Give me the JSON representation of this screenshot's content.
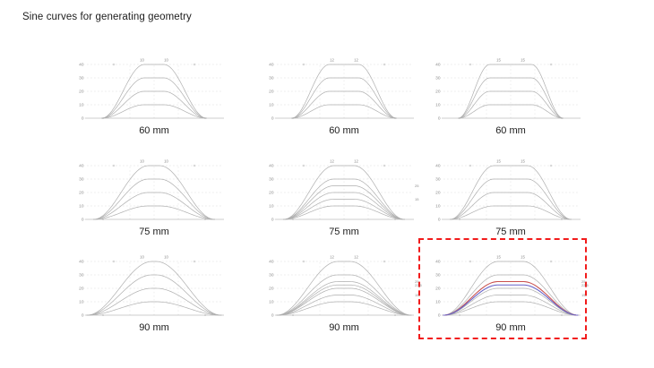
{
  "title": "Sine curves for generating geometry",
  "colors": {
    "curve_gray": "#afafaf",
    "curve_red": "#c9504e",
    "curve_blue": "#6460c8",
    "grid": "#d9d9d9",
    "axis": "#9a9a9a",
    "tick_text": "#8a8a8a",
    "label_text": "#1c1c1c",
    "highlight_border": "#f21b1b"
  },
  "chart_data": [
    {
      "type": "line",
      "label": "60 mm",
      "width_mm": 60,
      "crest_mm": [
        10,
        10
      ],
      "yticks": [
        0,
        10,
        20,
        30,
        40
      ],
      "ylim": [
        0,
        40
      ],
      "series": [
        {
          "name": "peak-40",
          "peak": 40,
          "color": "gray"
        },
        {
          "name": "peak-30",
          "peak": 30,
          "color": "gray"
        },
        {
          "name": "peak-20",
          "peak": 20,
          "color": "gray"
        },
        {
          "name": "peak-10",
          "peak": 10,
          "color": "gray"
        }
      ],
      "right_labels": [],
      "highlight": false
    },
    {
      "type": "line",
      "label": "60 mm",
      "width_mm": 60,
      "crest_mm": [
        12,
        12
      ],
      "yticks": [
        0,
        10,
        20,
        30,
        40
      ],
      "ylim": [
        0,
        40
      ],
      "series": [
        {
          "name": "peak-40",
          "peak": 40,
          "color": "gray"
        },
        {
          "name": "peak-30",
          "peak": 30,
          "color": "gray"
        },
        {
          "name": "peak-20",
          "peak": 20,
          "color": "gray"
        },
        {
          "name": "peak-10",
          "peak": 10,
          "color": "gray"
        }
      ],
      "right_labels": [],
      "highlight": false
    },
    {
      "type": "line",
      "label": "60 mm",
      "width_mm": 60,
      "crest_mm": [
        15,
        15
      ],
      "yticks": [
        0,
        10,
        20,
        30,
        40
      ],
      "ylim": [
        0,
        40
      ],
      "series": [
        {
          "name": "peak-40",
          "peak": 40,
          "color": "gray"
        },
        {
          "name": "peak-30",
          "peak": 30,
          "color": "gray"
        },
        {
          "name": "peak-20",
          "peak": 20,
          "color": "gray"
        },
        {
          "name": "peak-10",
          "peak": 10,
          "color": "gray"
        }
      ],
      "right_labels": [],
      "highlight": false
    },
    {
      "type": "line",
      "label": "75 mm",
      "width_mm": 75,
      "crest_mm": [
        10,
        10
      ],
      "yticks": [
        0,
        10,
        20,
        30,
        40
      ],
      "ylim": [
        0,
        40
      ],
      "series": [
        {
          "name": "peak-40",
          "peak": 40,
          "color": "gray"
        },
        {
          "name": "peak-30",
          "peak": 30,
          "color": "gray"
        },
        {
          "name": "peak-20",
          "peak": 20,
          "color": "gray"
        },
        {
          "name": "peak-10",
          "peak": 10,
          "color": "gray"
        }
      ],
      "right_labels": [],
      "highlight": false
    },
    {
      "type": "line",
      "label": "75 mm",
      "width_mm": 75,
      "crest_mm": [
        12,
        12
      ],
      "yticks": [
        0,
        10,
        20,
        30,
        40
      ],
      "ylim": [
        0,
        40
      ],
      "series": [
        {
          "name": "peak-40",
          "peak": 40,
          "color": "gray"
        },
        {
          "name": "peak-30",
          "peak": 30,
          "color": "gray"
        },
        {
          "name": "peak-25",
          "peak": 25,
          "color": "gray"
        },
        {
          "name": "peak-20",
          "peak": 20,
          "color": "gray"
        },
        {
          "name": "peak-15",
          "peak": 15,
          "color": "gray"
        },
        {
          "name": "peak-10",
          "peak": 10,
          "color": "gray"
        }
      ],
      "right_labels": [
        25,
        15
      ],
      "highlight": false
    },
    {
      "type": "line",
      "label": "75 mm",
      "width_mm": 75,
      "crest_mm": [
        15,
        15
      ],
      "yticks": [
        0,
        10,
        20,
        30,
        40
      ],
      "ylim": [
        0,
        40
      ],
      "series": [
        {
          "name": "peak-40",
          "peak": 40,
          "color": "gray"
        },
        {
          "name": "peak-30",
          "peak": 30,
          "color": "gray"
        },
        {
          "name": "peak-20",
          "peak": 20,
          "color": "gray"
        },
        {
          "name": "peak-10",
          "peak": 10,
          "color": "gray"
        }
      ],
      "right_labels": [],
      "highlight": false
    },
    {
      "type": "line",
      "label": "90 mm",
      "width_mm": 90,
      "crest_mm": [
        10,
        10
      ],
      "yticks": [
        0,
        10,
        20,
        30,
        40
      ],
      "ylim": [
        0,
        40
      ],
      "series": [
        {
          "name": "peak-40",
          "peak": 40,
          "color": "gray"
        },
        {
          "name": "peak-30",
          "peak": 30,
          "color": "gray"
        },
        {
          "name": "peak-20",
          "peak": 20,
          "color": "gray"
        },
        {
          "name": "peak-10",
          "peak": 10,
          "color": "gray"
        }
      ],
      "right_labels": [],
      "highlight": false
    },
    {
      "type": "line",
      "label": "90 mm",
      "width_mm": 90,
      "crest_mm": [
        12,
        12
      ],
      "yticks": [
        0,
        10,
        20,
        30,
        40
      ],
      "ylim": [
        0,
        40
      ],
      "series": [
        {
          "name": "peak-40",
          "peak": 40,
          "color": "gray"
        },
        {
          "name": "peak-30",
          "peak": 30,
          "color": "gray"
        },
        {
          "name": "peak-25",
          "peak": 25,
          "color": "gray"
        },
        {
          "name": "peak-22.5",
          "peak": 22.5,
          "color": "gray"
        },
        {
          "name": "peak-20",
          "peak": 20,
          "color": "gray"
        },
        {
          "name": "peak-15",
          "peak": 15,
          "color": "gray"
        },
        {
          "name": "peak-10",
          "peak": 10,
          "color": "gray"
        }
      ],
      "right_labels": [
        25,
        22.5,
        15
      ],
      "highlight": false
    },
    {
      "type": "line",
      "label": "90 mm",
      "width_mm": 90,
      "crest_mm": [
        15,
        15
      ],
      "yticks": [
        0,
        10,
        20,
        30,
        40
      ],
      "ylim": [
        0,
        40
      ],
      "series": [
        {
          "name": "peak-40",
          "peak": 40,
          "color": "gray"
        },
        {
          "name": "peak-30",
          "peak": 30,
          "color": "gray"
        },
        {
          "name": "peak-25",
          "peak": 25,
          "color": "red"
        },
        {
          "name": "peak-22.5",
          "peak": 22.5,
          "color": "blue"
        },
        {
          "name": "peak-20",
          "peak": 20,
          "color": "gray"
        },
        {
          "name": "peak-15",
          "peak": 15,
          "color": "gray"
        },
        {
          "name": "peak-10",
          "peak": 10,
          "color": "gray"
        }
      ],
      "right_labels": [
        25,
        22.5,
        15
      ],
      "highlight": true
    }
  ]
}
